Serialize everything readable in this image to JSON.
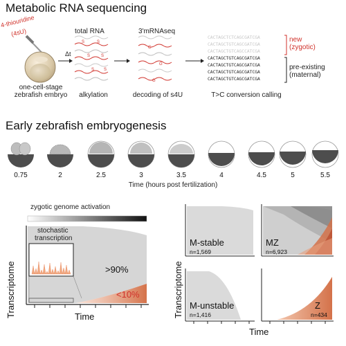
{
  "top": {
    "title": "Metabolic RNA sequencing",
    "label_4su": "4-thiouridine",
    "label_4su_abbr": "(4sU)",
    "delta_t": "Δt",
    "total_rna": "total RNA",
    "three_prime": "3'mRNAseq",
    "embryo_caption_line1": "one-cell-stage",
    "embryo_caption_line2": "zebrafish embryo",
    "alkylation": "alkylation",
    "decoding": "decoding of s4U",
    "tc_calling": "T>C conversion calling",
    "new_label": "new",
    "new_label2": "(zygotic)",
    "pre_label": "pre-existing",
    "pre_label2": "(maternal)",
    "new_reads": [
      "CACTAGCTCTCAGCGATCGA",
      "CACTAGCTGTCAGCGATCGA",
      "CACTAGCTGTCAGCCATCGA"
    ],
    "old_reads": [
      "CACTAGCTGTCAGCGATCGA",
      "CACTAGCTGTCAGCGATCGA",
      "CACTAGCTGTCAGCGATCGA",
      "CACTAGCTGTCAGCGATCGA"
    ]
  },
  "middle": {
    "title": "Early zebrafish embryogenesis",
    "stages": [
      "0.75",
      "2",
      "2.5",
      "3",
      "3.5",
      "4",
      "4.5",
      "5",
      "5.5"
    ],
    "xaxis": "Time (hours post fertilization)"
  },
  "bottom_left": {
    "zga": "zygotic genome activation",
    "ylabel": "Transcriptome",
    "xlabel": "Time",
    "stochastic_line1": "stochastic",
    "stochastic_line2": "transcription",
    "pct_high": ">90%",
    "pct_low": "<10%"
  },
  "bottom_right": {
    "ylabel": "Transcriptome",
    "xlabel": "Time",
    "panels": [
      {
        "name": "M-stable",
        "n": "n=1,569"
      },
      {
        "name": "MZ",
        "n": "n=6,923"
      },
      {
        "name": "M-unstable",
        "n": "n=1,416"
      },
      {
        "name": "Z",
        "n": "n=434"
      }
    ]
  },
  "colors": {
    "accent_red": "#d0322b",
    "zygotic_fill": "#e8a07e",
    "maternal_fill": "#d4d4d4",
    "embryo_dark": "#4d4d4d"
  }
}
